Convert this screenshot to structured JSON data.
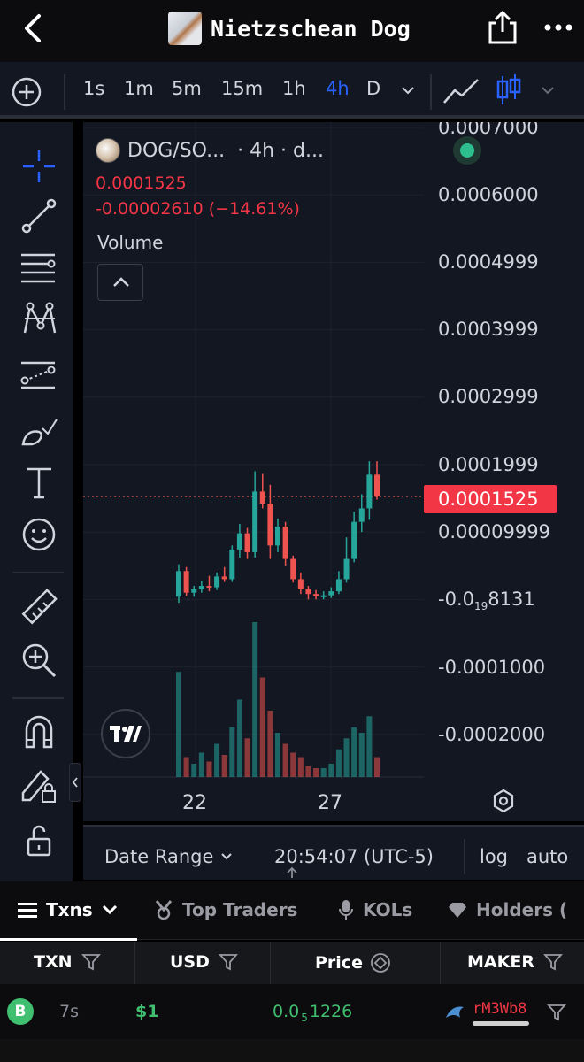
{
  "header": {
    "title": "Nietzschean Dog"
  },
  "timeframes": {
    "items": [
      "1s",
      "1m",
      "5m",
      "15m",
      "1h",
      "4h",
      "D"
    ],
    "active": "4h"
  },
  "chart": {
    "symbol": "DOG/SO...",
    "interval_label": "· 4h · d...",
    "last_price": "0.0001525",
    "change": "-0.00002610 (−14.61%)",
    "volume_label": "Volume",
    "y_ticks": [
      "0.0007000",
      "0.0006000",
      "0.0004999",
      "0.0003999",
      "0.0002999",
      "0.0001999",
      "0.00009999",
      "-0.0001000",
      "-0.0002000"
    ],
    "y_tick_special": {
      "prefix": "-0.0",
      "sub": "19",
      "suffix": "8131"
    },
    "price_tag": "0.0001525",
    "x_ticks": [
      "22",
      "27"
    ],
    "colors": {
      "up": "#26a69a",
      "down": "#ef5350",
      "accent": "#2962ff"
    }
  },
  "chart_data": {
    "type": "candlestick",
    "symbol": "DOG/SO...",
    "interval": "4h",
    "x_tick_labels": [
      "22",
      "27"
    ],
    "y_range": [
      -0.00025,
      0.0007
    ],
    "last_price": 0.0001525,
    "candles_approx": [
      {
        "o": 4e-06,
        "h": 5.2e-05,
        "l": -5e-06,
        "c": 4.2e-05
      },
      {
        "o": 4.2e-05,
        "h": 4.8e-05,
        "l": 5e-06,
        "c": 1e-05
      },
      {
        "o": 1e-05,
        "h": 2e-05,
        "l": 4e-06,
        "c": 1.5e-05
      },
      {
        "o": 1.5e-05,
        "h": 2.8e-05,
        "l": 1e-05,
        "c": 2e-05
      },
      {
        "o": 2e-05,
        "h": 3.5e-05,
        "l": 1.2e-05,
        "c": 1.8e-05
      },
      {
        "o": 1.8e-05,
        "h": 4e-05,
        "l": 1.4e-05,
        "c": 3.4e-05
      },
      {
        "o": 3.4e-05,
        "h": 4.8e-05,
        "l": 2.6e-05,
        "c": 3e-05
      },
      {
        "o": 3e-05,
        "h": 8e-05,
        "l": 2.6e-05,
        "c": 7.4e-05
      },
      {
        "o": 7.4e-05,
        "h": 0.000112,
        "l": 6.2e-05,
        "c": 9.8e-05
      },
      {
        "o": 9.8e-05,
        "h": 0.000106,
        "l": 6e-05,
        "c": 7e-05
      },
      {
        "o": 7e-05,
        "h": 0.00019,
        "l": 6.2e-05,
        "c": 0.00016
      },
      {
        "o": 0.00016,
        "h": 0.000186,
        "l": 0.000135,
        "c": 0.000142
      },
      {
        "o": 0.000142,
        "h": 0.00017,
        "l": 6e-05,
        "c": 8e-05
      },
      {
        "o": 8e-05,
        "h": 0.00012,
        "l": 7e-05,
        "c": 0.000108
      },
      {
        "o": 0.000108,
        "h": 0.000115,
        "l": 5e-05,
        "c": 6e-05
      },
      {
        "o": 6e-05,
        "h": 6.5e-05,
        "l": 2.5e-05,
        "c": 3e-05
      },
      {
        "o": 3e-05,
        "h": 4e-05,
        "l": 8e-06,
        "c": 1.5e-05
      },
      {
        "o": 1.5e-05,
        "h": 2e-05,
        "l": 0.0,
        "c": 8e-06
      },
      {
        "o": 8e-06,
        "h": 1.4e-05,
        "l": 0.0,
        "c": 5e-06
      },
      {
        "o": 5e-06,
        "h": 1.2e-05,
        "l": 0.0,
        "c": 6e-06
      },
      {
        "o": 6e-06,
        "h": 1.8e-05,
        "l": 2e-06,
        "c": 1.2e-05
      },
      {
        "o": 1.2e-05,
        "h": 4.2e-05,
        "l": 8e-06,
        "c": 3e-05
      },
      {
        "o": 3e-05,
        "h": 9.2e-05,
        "l": 2.5e-05,
        "c": 6e-05
      },
      {
        "o": 6e-05,
        "h": 0.00013,
        "l": 5.5e-05,
        "c": 0.000115
      },
      {
        "o": 0.000115,
        "h": 0.000156,
        "l": 0.0001,
        "c": 0.000135
      },
      {
        "o": 0.000135,
        "h": 0.000205,
        "l": 0.000118,
        "c": 0.000185
      },
      {
        "o": 0.000185,
        "h": 0.000205,
        "l": 0.000148,
        "c": 0.0001525
      }
    ]
  },
  "range_bar": {
    "date_range": "Date Range",
    "time": "20:54:07 (UTC-5)",
    "log": "log",
    "auto": "auto"
  },
  "tabs": [
    {
      "label": "Txns"
    },
    {
      "label": "Top Traders"
    },
    {
      "label": "KOLs"
    },
    {
      "label": "Holders ("
    }
  ],
  "table": {
    "headers": [
      "TXN",
      "USD",
      "Price",
      "MAKER"
    ],
    "rows": [
      {
        "type": "B",
        "age": "7s",
        "usd": "$1",
        "price_prefix": "0.0",
        "price_sub": "5",
        "price_suffix": "1226",
        "maker": "rM3Wb8"
      }
    ]
  }
}
